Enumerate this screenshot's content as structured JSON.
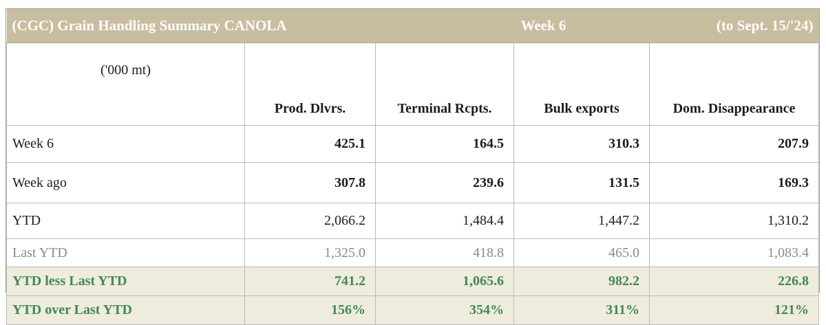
{
  "table": {
    "title": "(CGC) Grain Handling Summary CANOLA",
    "week_label": "Week 6",
    "date_note": "(to Sept. 15/'24)",
    "units": "('000 mt)",
    "columns": [
      "Prod. Dlvrs.",
      "Terminal Rcpts.",
      "Bulk exports",
      "Dom. Disappearance"
    ],
    "rows": [
      {
        "label": "Week 6",
        "values": [
          "425.1",
          "164.5",
          "310.3",
          "207.9"
        ]
      },
      {
        "label": "Week ago",
        "values": [
          "307.8",
          "239.6",
          "131.5",
          "169.3"
        ]
      },
      {
        "label": "YTD",
        "values": [
          "2,066.2",
          "1,484.4",
          "1,447.2",
          "1,310.2"
        ]
      },
      {
        "label": "Last YTD",
        "values": [
          "1,325.0",
          "418.8",
          "465.0",
          "1,083.4"
        ]
      },
      {
        "label": "YTD less Last YTD",
        "values": [
          "741.2",
          "1,065.6",
          "982.2",
          "226.8"
        ]
      },
      {
        "label": "YTD over Last YTD",
        "values": [
          "156%",
          "354%",
          "311%",
          "121%"
        ]
      }
    ]
  }
}
